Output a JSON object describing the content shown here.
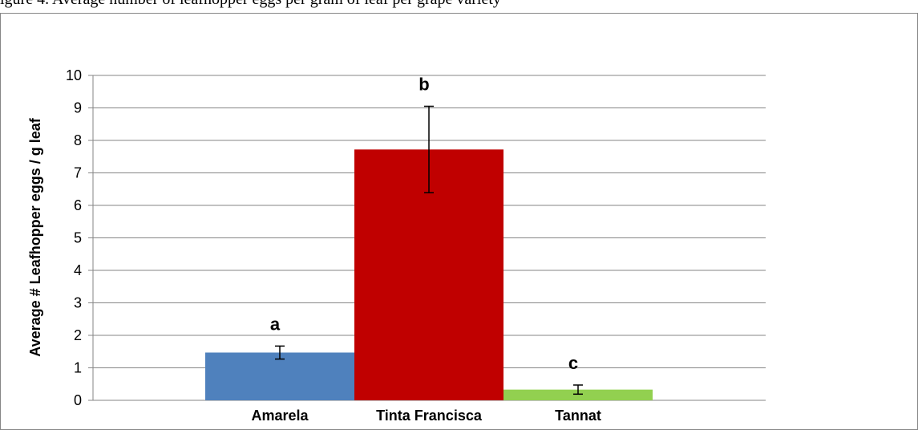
{
  "caption": "igure 4. Average number of leafhopper eggs per gram of leaf per grape variety",
  "chart_data": {
    "type": "bar",
    "title": "",
    "xlabel": "",
    "ylabel": "Average # Leafhopper eggs / g leaf",
    "ylim": [
      0,
      10
    ],
    "yticks": [
      "0",
      "1",
      "2",
      "3",
      "4",
      "5",
      "6",
      "7",
      "8",
      "9",
      "10"
    ],
    "grid": true,
    "categories": [
      "Amarela",
      "Tinta Francisca",
      "Tannat"
    ],
    "values": [
      1.47,
      7.72,
      0.33
    ],
    "error": [
      0.2,
      1.33,
      0.14
    ],
    "annotations": [
      "a",
      "b",
      "c"
    ],
    "colors": [
      "#4f81bd",
      "#c00000",
      "#92d050"
    ]
  }
}
